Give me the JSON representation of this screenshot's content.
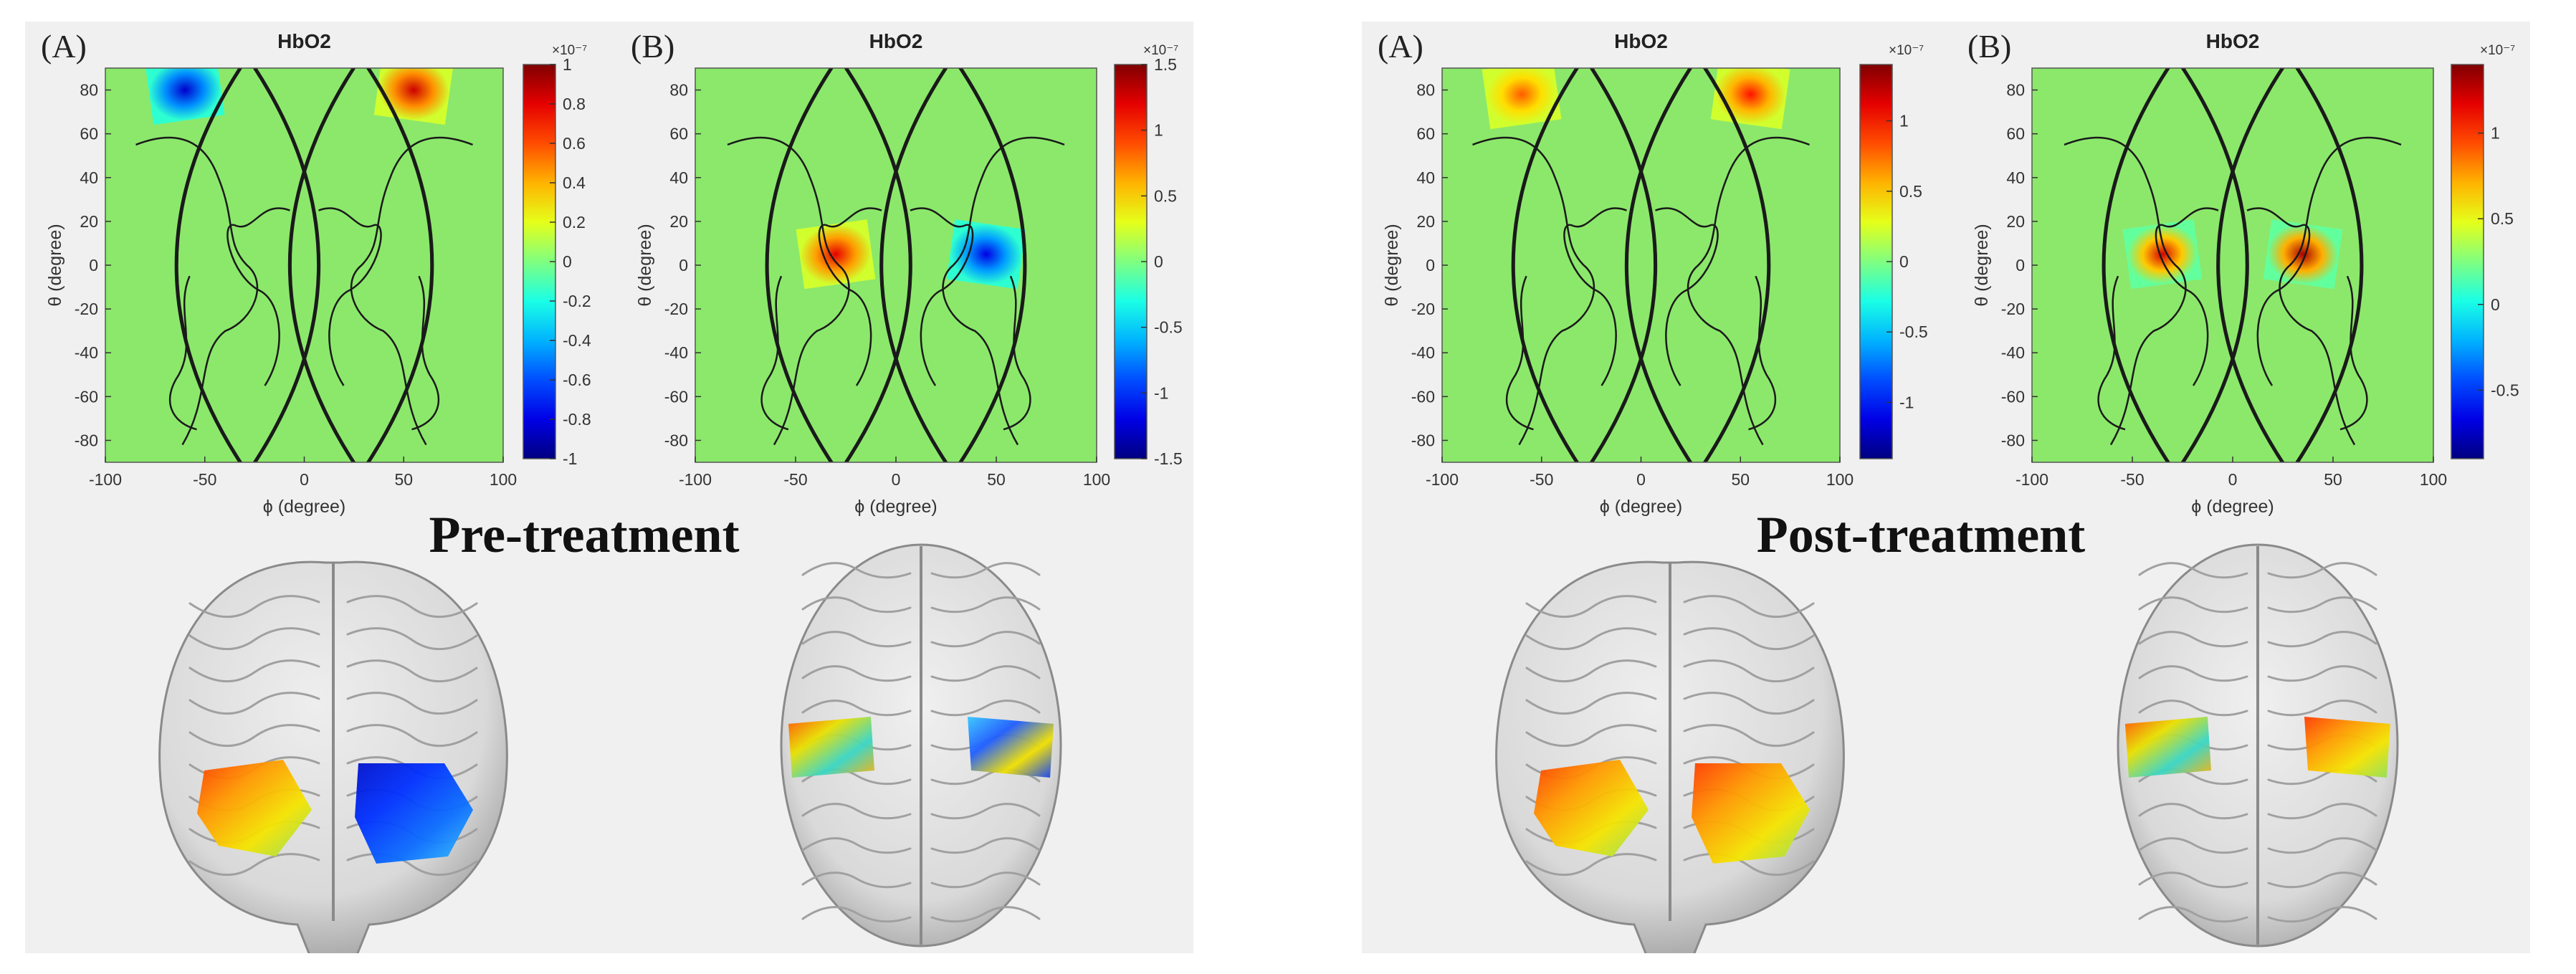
{
  "colors": {
    "map_background": "#8ce86b",
    "brain_surface": "#d9d9d9",
    "panel_background": "#f0f0f0"
  },
  "x_axis": {
    "label": "ϕ (degree)",
    "ticks": [
      "-100",
      "-50",
      "0",
      "50",
      "100"
    ]
  },
  "y_axis": {
    "label": "θ (degree)",
    "ticks": [
      "80",
      "60",
      "40",
      "20",
      "0",
      "-20",
      "-40",
      "-60",
      "-80"
    ]
  },
  "figures": [
    {
      "caption": "Pre-treatment",
      "plots": [
        {
          "label": "(A)",
          "title": "HbO2",
          "colorbar": {
            "exponent": "×10⁻⁷",
            "min": -1,
            "max": 1,
            "ticks": [
              "1",
              "0.8",
              "0.6",
              "0.4",
              "0.2",
              "0",
              "-0.2",
              "-0.4",
              "-0.6",
              "-0.8",
              "-1"
            ]
          },
          "activation_blobs": [
            {
              "phi": -60,
              "theta": 80,
              "value": -0.85
            },
            {
              "phi": 55,
              "theta": 80,
              "value": 0.85
            }
          ]
        },
        {
          "label": "(B)",
          "title": "HbO2",
          "colorbar": {
            "exponent": "×10⁻⁷",
            "min": -1.5,
            "max": 1.5,
            "ticks": [
              "1.5",
              "1",
              "0.5",
              "0",
              "-0.5",
              "-1",
              "-1.5"
            ]
          },
          "activation_blobs": [
            {
              "phi": -30,
              "theta": 5,
              "value": 1.2
            },
            {
              "phi": 45,
              "theta": 5,
              "value": -1.2
            }
          ]
        }
      ],
      "brain_views": [
        {
          "view": "frontal",
          "left_patch": "warm",
          "right_patch": "blue"
        },
        {
          "view": "top",
          "left_patch": "mixed",
          "right_patch": "mixed-blue"
        }
      ]
    },
    {
      "caption": "Post-treatment",
      "plots": [
        {
          "label": "(A)",
          "title": "HbO2",
          "colorbar": {
            "exponent": "×10⁻⁷",
            "min": -1.4,
            "max": 1.4,
            "ticks": [
              "1",
              "0.5",
              "0",
              "-0.5",
              "-1"
            ]
          },
          "activation_blobs": [
            {
              "phi": -60,
              "theta": 78,
              "value": 0.8
            },
            {
              "phi": 55,
              "theta": 78,
              "value": 1.0
            }
          ]
        },
        {
          "label": "(B)",
          "title": "HbO2",
          "colorbar": {
            "exponent": "×10⁻⁷",
            "min": -0.9,
            "max": 1.4,
            "ticks": [
              "1",
              "0.5",
              "0",
              "-0.5"
            ]
          },
          "activation_blobs": [
            {
              "phi": -35,
              "theta": 5,
              "value": 1.2
            },
            {
              "phi": 35,
              "theta": 5,
              "value": 1.3
            }
          ]
        }
      ],
      "brain_views": [
        {
          "view": "frontal",
          "left_patch": "warm",
          "right_patch": "warm"
        },
        {
          "view": "top",
          "left_patch": "mixed",
          "right_patch": "warm"
        }
      ]
    }
  ]
}
